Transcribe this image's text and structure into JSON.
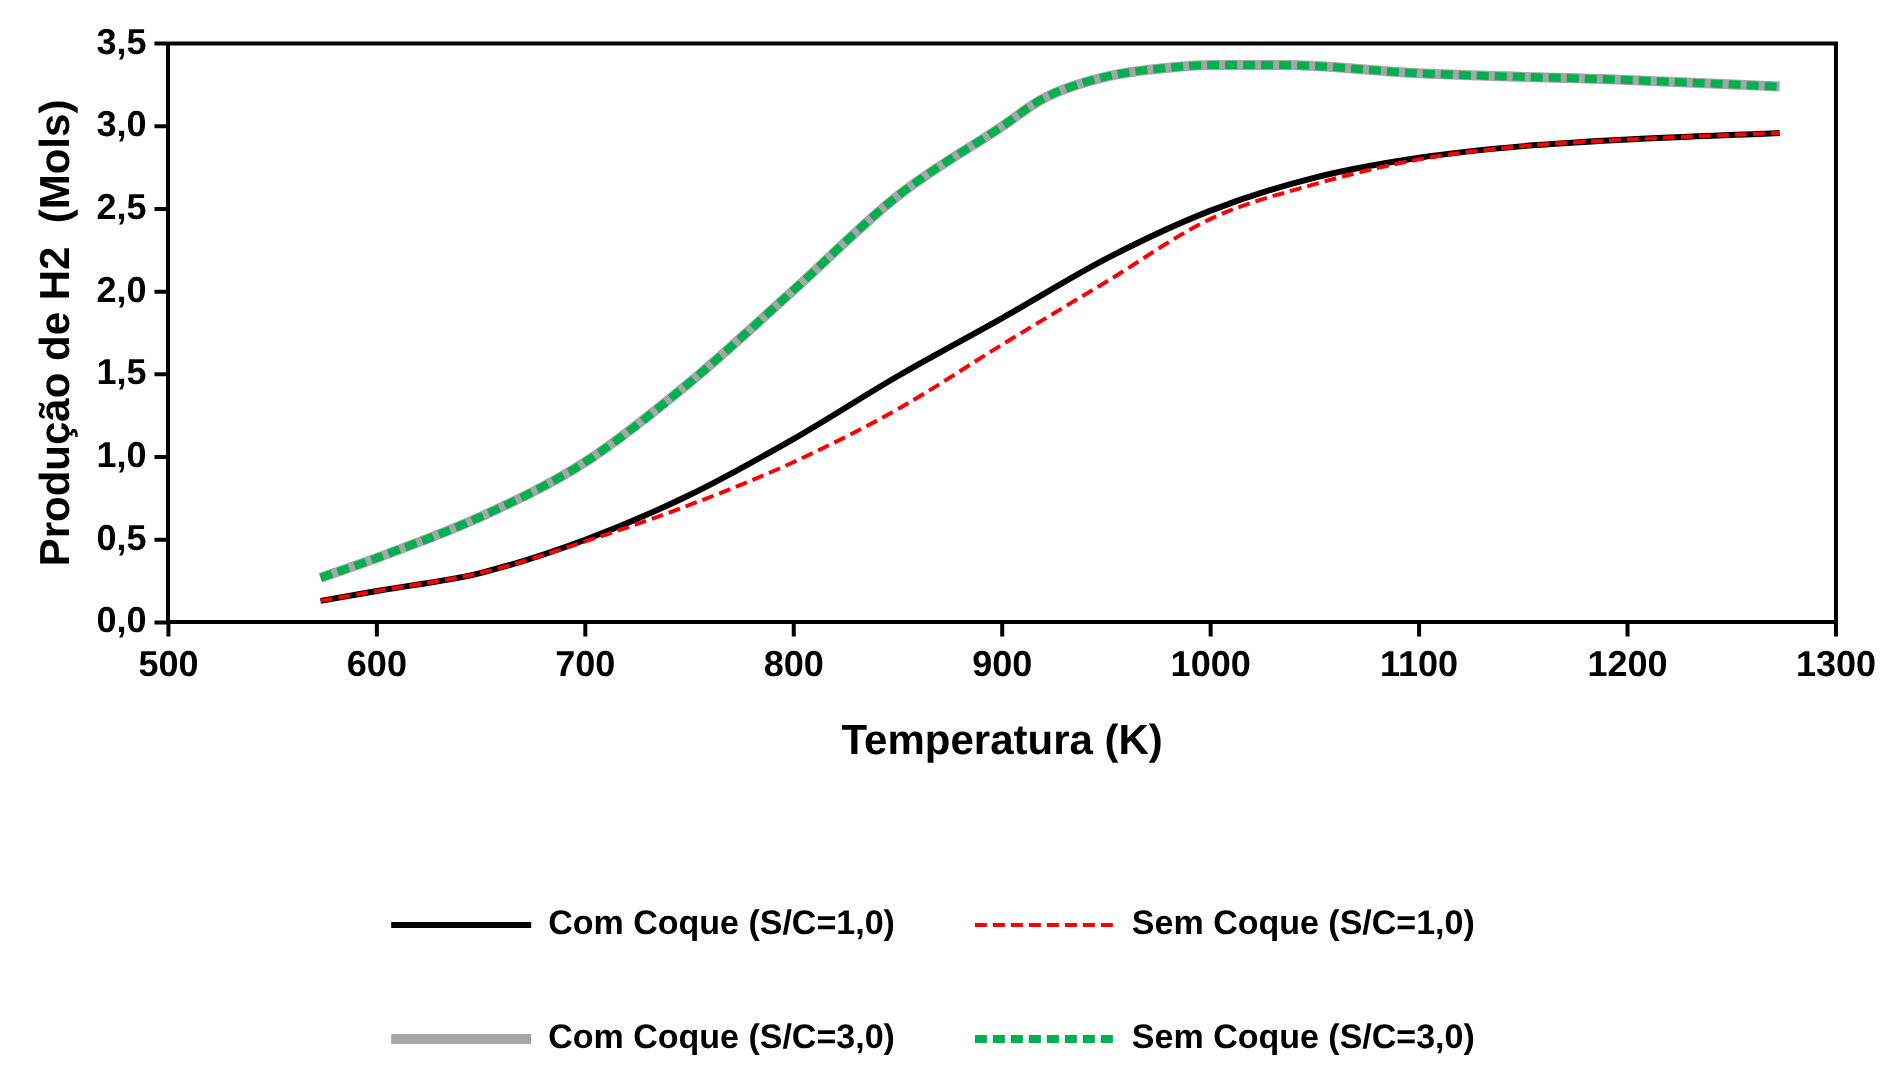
{
  "chart_data": {
    "type": "line",
    "xlabel": "Temperatura (K)",
    "ylabel": "Produção de H2  (Mols)",
    "xlim": [
      500,
      1300
    ],
    "xticks": [
      500,
      600,
      700,
      800,
      900,
      1000,
      1100,
      1200,
      1300
    ],
    "ylim": [
      0,
      3.5
    ],
    "yticks": [
      {
        "value": 0,
        "label": "0,0"
      },
      {
        "value": 0.5,
        "label": "0,5"
      },
      {
        "value": 1,
        "label": "1,0"
      },
      {
        "value": 1.5,
        "label": "1,5"
      },
      {
        "value": 2,
        "label": "2,0"
      },
      {
        "value": 2.5,
        "label": "2,5"
      },
      {
        "value": 3,
        "label": "3,0"
      },
      {
        "value": 3.5,
        "label": "3,5"
      }
    ],
    "grid": false,
    "legend": "bottom",
    "marker": "none",
    "series": [
      {
        "name": "Com Coque (S/C=1,0)",
        "color": "#000000",
        "line_style": "solid",
        "x": [
          573,
          600,
          650,
          700,
          750,
          800,
          850,
          900,
          950,
          1000,
          1050,
          1100,
          1150,
          1200,
          1273
        ],
        "values": [
          0.13,
          0.19,
          0.3,
          0.5,
          0.77,
          1.11,
          1.49,
          1.84,
          2.2,
          2.49,
          2.69,
          2.81,
          2.88,
          2.92,
          2.96
        ]
      },
      {
        "name": "Sem Coque (S/C=1,0)",
        "color": "#ff0000",
        "line_style": "dashed",
        "x": [
          573,
          600,
          650,
          700,
          750,
          800,
          850,
          900,
          950,
          1000,
          1050,
          1100,
          1150,
          1200,
          1273
        ],
        "values": [
          0.13,
          0.19,
          0.3,
          0.49,
          0.71,
          0.97,
          1.29,
          1.68,
          2.06,
          2.44,
          2.65,
          2.8,
          2.88,
          2.92,
          2.96
        ]
      },
      {
        "name": "Com Coque (S/C=3,0)",
        "color": "#a6a6a6",
        "line_style": "solid",
        "x": [
          573,
          600,
          650,
          700,
          750,
          800,
          850,
          900,
          920,
          950,
          985,
          1000,
          1035,
          1100,
          1200,
          1273
        ],
        "values": [
          0.27,
          0.39,
          0.64,
          0.97,
          1.45,
          2.01,
          2.58,
          3.0,
          3.17,
          3.3,
          3.36,
          3.37,
          3.37,
          3.32,
          3.28,
          3.24
        ]
      },
      {
        "name": "Sem Coque (S/C=3,0)",
        "color": "#00b050",
        "line_style": "dashed",
        "x": [
          573,
          600,
          650,
          700,
          750,
          800,
          850,
          900,
          920,
          950,
          985,
          1000,
          1035,
          1100,
          1200,
          1273
        ],
        "values": [
          0.27,
          0.39,
          0.64,
          0.97,
          1.45,
          2.01,
          2.58,
          3.0,
          3.17,
          3.3,
          3.36,
          3.37,
          3.37,
          3.32,
          3.28,
          3.24
        ]
      }
    ]
  }
}
